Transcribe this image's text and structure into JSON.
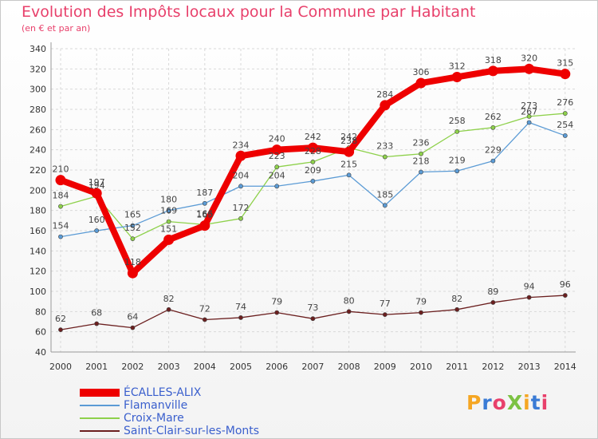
{
  "header": {
    "title": "Evolution des Impôts locaux pour la Commune par Habitant",
    "subtitle": "(en € et par an)"
  },
  "logo": {
    "text": "ProXiti",
    "colors": [
      "#f5a623",
      "#3a7bd5",
      "#e8406b",
      "#7cc242"
    ]
  },
  "chart_data": {
    "type": "line",
    "x": [
      "2000",
      "2001",
      "2002",
      "2003",
      "2004",
      "2005",
      "2006",
      "2007",
      "2008",
      "2009",
      "2010",
      "2011",
      "2012",
      "2013",
      "2014"
    ],
    "ylim": [
      40,
      340
    ],
    "yticks": [
      40,
      60,
      80,
      100,
      120,
      140,
      160,
      180,
      200,
      220,
      240,
      260,
      280,
      300,
      320,
      340
    ],
    "grid": true,
    "legend_position": "bottom-left",
    "series": [
      {
        "name": "ÉCALLES-ALIX",
        "color": "#ee0000",
        "values": [
          210,
          197,
          118,
          151,
          165,
          234,
          240,
          242,
          238,
          284,
          306,
          312,
          318,
          320,
          315
        ],
        "labels": [
          "210",
          "197",
          "118",
          "151",
          "165",
          "234",
          "240",
          "242",
          "238",
          "284",
          "306",
          "312",
          "318",
          "320",
          "315"
        ]
      },
      {
        "name": "Flamanville",
        "color": "#5b9bd5",
        "values": [
          154,
          160,
          165,
          180,
          187,
          204,
          204,
          209,
          215,
          185,
          218,
          219,
          229,
          267,
          254
        ],
        "labels": [
          "154",
          "160",
          "165",
          "180",
          "187",
          "204",
          "204",
          "209",
          "215",
          "185",
          "218",
          "219",
          "229",
          "267",
          "254"
        ]
      },
      {
        "name": "Croix-Mare",
        "color": "#8ed14b",
        "values": [
          184,
          194,
          152,
          169,
          166,
          172,
          223,
          228,
          242,
          233,
          236,
          258,
          262,
          273,
          276
        ],
        "labels": [
          "184",
          "194",
          "152",
          "169",
          "166",
          "172",
          "223",
          "228",
          "242",
          "233",
          "236",
          "258",
          "262",
          "273",
          "276"
        ]
      },
      {
        "name": "Saint-Clair-sur-les-Monts",
        "color": "#6b1f1f",
        "values": [
          62,
          68,
          64,
          82,
          72,
          74,
          79,
          73,
          80,
          77,
          79,
          82,
          89,
          94,
          96
        ],
        "labels": [
          "62",
          "68",
          "64",
          "82",
          "72",
          "74",
          "79",
          "73",
          "80",
          "77",
          "79",
          "82",
          "89",
          "94",
          "96"
        ]
      }
    ]
  }
}
